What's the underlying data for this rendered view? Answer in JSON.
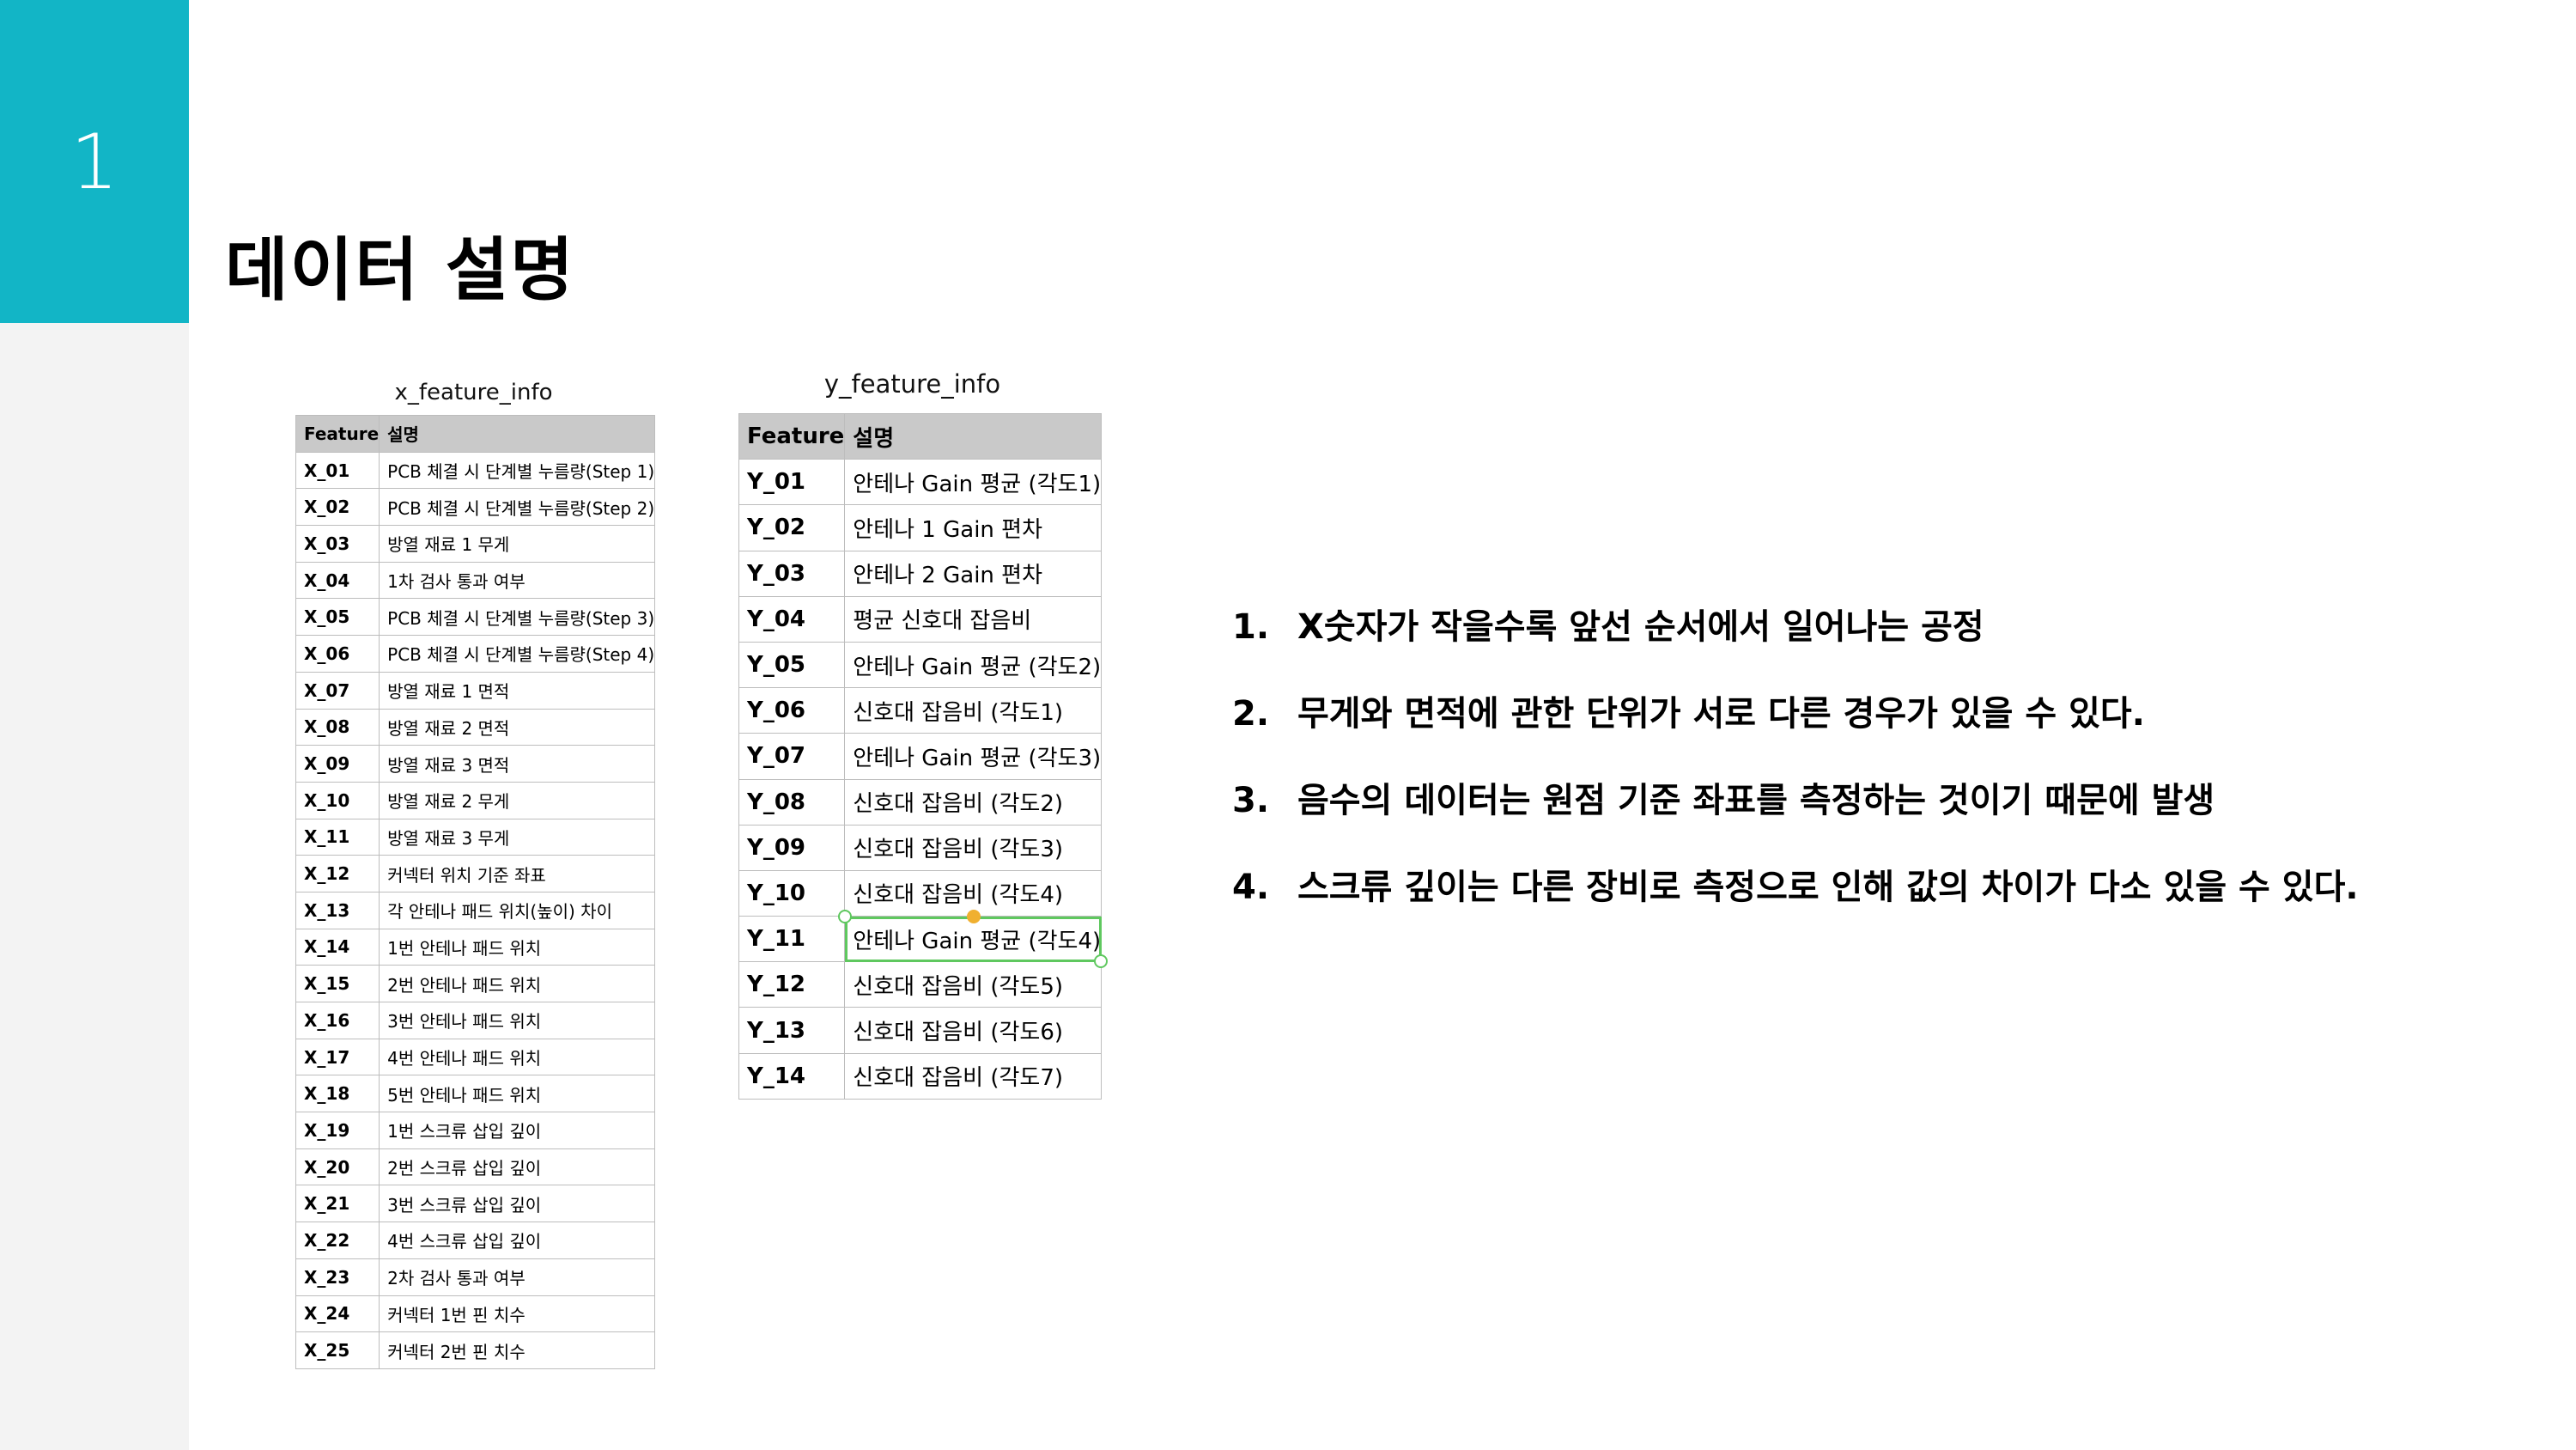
{
  "slide": {
    "number": "1",
    "title": "데이터 설명"
  },
  "x_table": {
    "caption": "x_feature_info",
    "headers": [
      "Feature",
      "설명"
    ],
    "rows": [
      [
        "X_01",
        "PCB 체결 시 단계별 누름량(Step 1)"
      ],
      [
        "X_02",
        "PCB 체결 시 단계별 누름량(Step 2)"
      ],
      [
        "X_03",
        "방열 재료 1 무게"
      ],
      [
        "X_04",
        "1차 검사 통과 여부"
      ],
      [
        "X_05",
        "PCB 체결 시 단계별 누름량(Step 3)"
      ],
      [
        "X_06",
        "PCB 체결 시 단계별 누름량(Step 4)"
      ],
      [
        "X_07",
        "방열 재료 1 면적"
      ],
      [
        "X_08",
        "방열 재료 2 면적"
      ],
      [
        "X_09",
        "방열 재료 3 면적"
      ],
      [
        "X_10",
        "방열 재료 2 무게"
      ],
      [
        "X_11",
        "방열 재료 3 무게"
      ],
      [
        "X_12",
        "커넥터 위치 기준 좌표"
      ],
      [
        "X_13",
        "각 안테나 패드 위치(높이) 차이"
      ],
      [
        "X_14",
        "1번 안테나 패드 위치"
      ],
      [
        "X_15",
        "2번 안테나 패드 위치"
      ],
      [
        "X_16",
        "3번 안테나 패드 위치"
      ],
      [
        "X_17",
        "4번 안테나 패드 위치"
      ],
      [
        "X_18",
        "5번 안테나 패드 위치"
      ],
      [
        "X_19",
        "1번 스크류 삽입 깊이"
      ],
      [
        "X_20",
        "2번 스크류 삽입 깊이"
      ],
      [
        "X_21",
        "3번 스크류 삽입 깊이"
      ],
      [
        "X_22",
        "4번 스크류 삽입 깊이"
      ],
      [
        "X_23",
        "2차 검사 통과 여부"
      ],
      [
        "X_24",
        "커넥터 1번 핀 치수"
      ],
      [
        "X_25",
        "커넥터 2번 핀 치수"
      ]
    ]
  },
  "y_table": {
    "caption": "y_feature_info",
    "headers": [
      "Feature",
      "설명"
    ],
    "selected_row": "Y_11",
    "rows": [
      [
        "Y_01",
        "안테나 Gain 평균 (각도1)"
      ],
      [
        "Y_02",
        "안테나 1 Gain 편차"
      ],
      [
        "Y_03",
        "안테나 2 Gain 편차"
      ],
      [
        "Y_04",
        "평균 신호대 잡음비"
      ],
      [
        "Y_05",
        "안테나 Gain 평균 (각도2)"
      ],
      [
        "Y_06",
        "신호대 잡음비  (각도1)"
      ],
      [
        "Y_07",
        "안테나 Gain 평균 (각도3)"
      ],
      [
        "Y_08",
        "신호대 잡음비  (각도2)"
      ],
      [
        "Y_09",
        "신호대 잡음비  (각도3)"
      ],
      [
        "Y_10",
        "신호대 잡음비  (각도4)"
      ],
      [
        "Y_11",
        "안테나 Gain 평균 (각도4)"
      ],
      [
        "Y_12",
        "신호대 잡음비  (각도5)"
      ],
      [
        "Y_13",
        "신호대 잡음비  (각도6)"
      ],
      [
        "Y_14",
        "신호대 잡음비  (각도7)"
      ]
    ]
  },
  "notes": [
    {
      "num": "1.",
      "text": "X숫자가 작을수록 앞선 순서에서 일어나는 공정"
    },
    {
      "num": "2.",
      "text": "무게와 면적에 관한 단위가 서로 다른 경우가 있을 수 있다."
    },
    {
      "num": "3.",
      "text": "음수의 데이터는 원점 기준 좌표를 측정하는 것이기 때문에 발생"
    },
    {
      "num": "4.",
      "text": "스크류 깊이는 다른 장비로 측정으로 인해 값의 차이가 다소 있을 수 있다."
    }
  ],
  "colors": {
    "accent": "#12b5c6",
    "strip": "#f3f3f3",
    "table_header": "#c9c9c9",
    "selection": "#5fc85f"
  }
}
